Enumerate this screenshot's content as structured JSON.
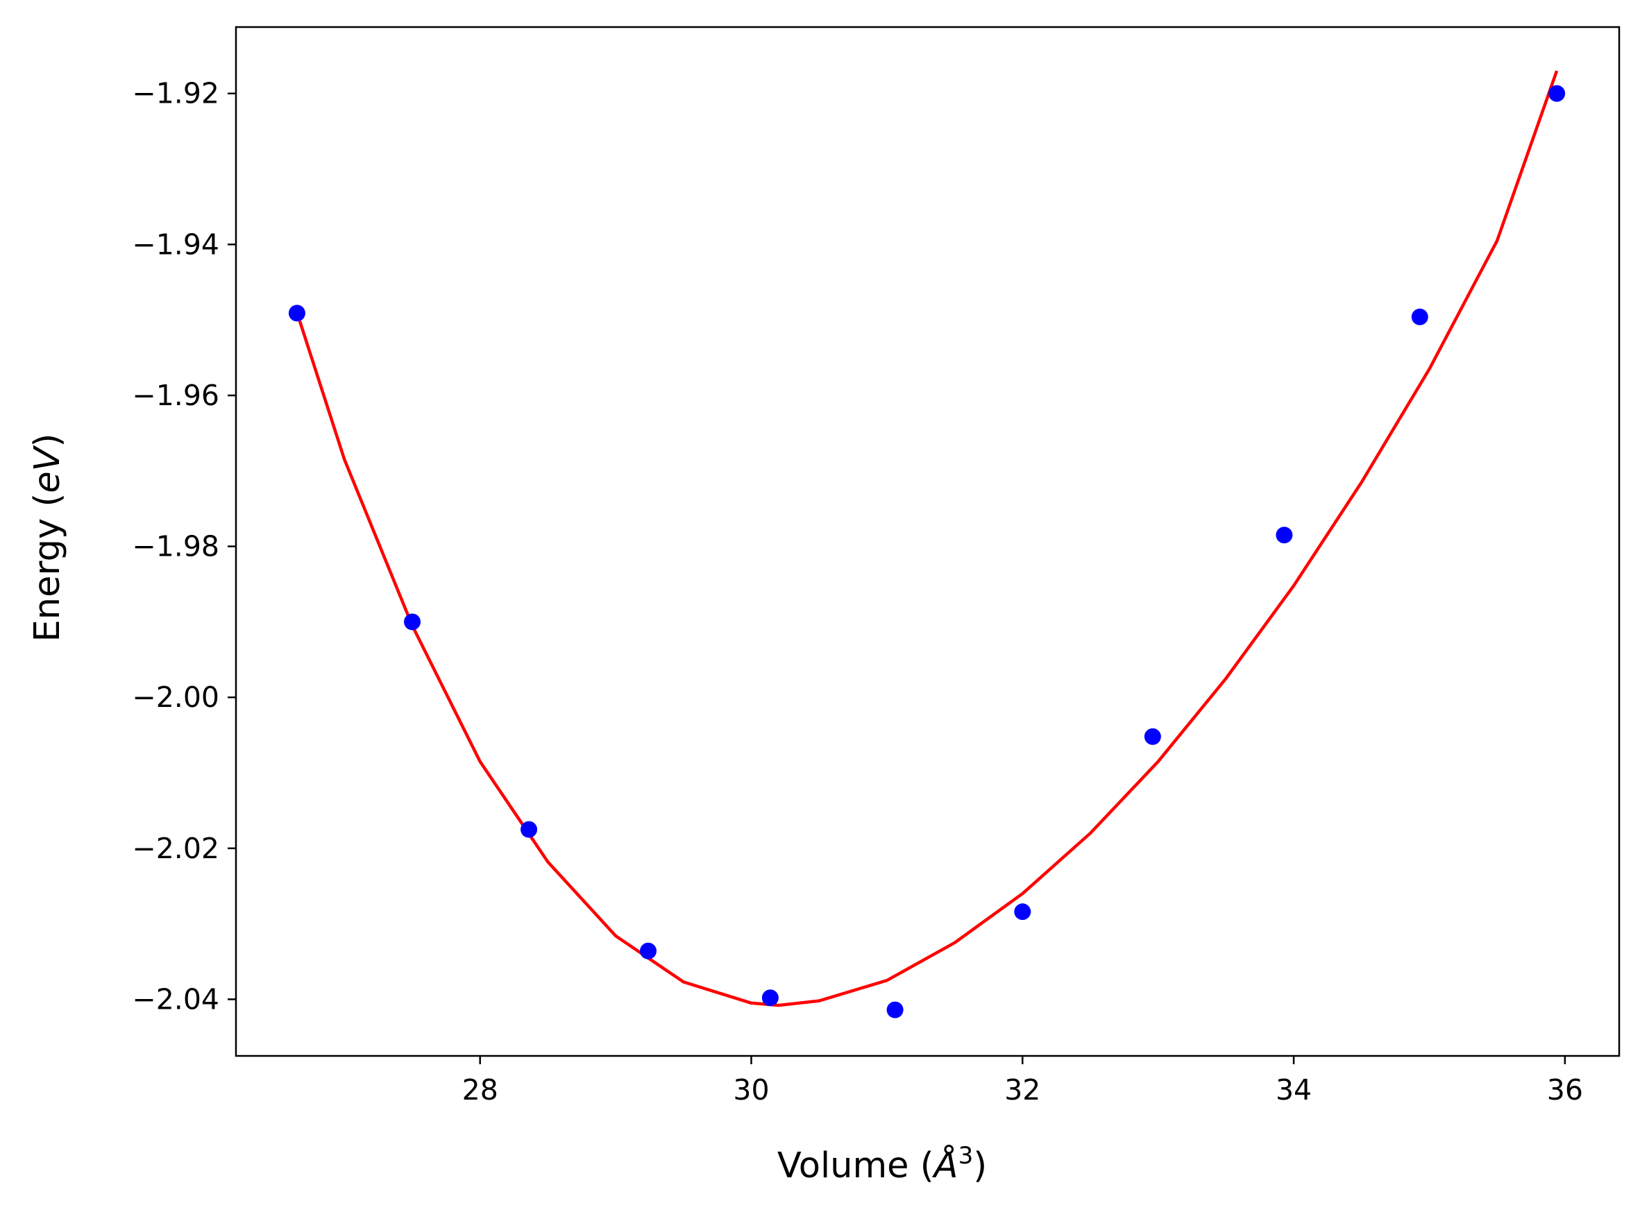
{
  "chart_data": {
    "type": "scatter",
    "title": "",
    "xlabel": "Volume (",
    "xlabel_symbol": "Å",
    "xlabel_exponent": "3",
    "xlabel_close": ")",
    "ylabel": "Energy (",
    "ylabel_italic": "eV",
    "ylabel_close": ")",
    "xlim": [
      26.2,
      36.4
    ],
    "ylim": [
      -2.0475,
      -1.9112
    ],
    "xticks": [
      28,
      30,
      32,
      34,
      36
    ],
    "xtick_labels": [
      "28",
      "30",
      "32",
      "34",
      "36"
    ],
    "yticks": [
      -2.04,
      -2.02,
      -2.0,
      -1.98,
      -1.96,
      -1.94,
      -1.92
    ],
    "ytick_labels": [
      "−2.04",
      "−2.02",
      "−2.00",
      "−1.98",
      "−1.96",
      "−1.94",
      "−1.92"
    ],
    "grid": false,
    "series": [
      {
        "kind": "points",
        "color": "#0000ff",
        "x": [
          26.65,
          27.5,
          28.36,
          29.24,
          30.14,
          31.06,
          32.0,
          32.96,
          33.93,
          34.93,
          35.94
        ],
        "y": [
          -1.9491,
          -1.99,
          -2.0175,
          -2.0336,
          -2.0398,
          -2.0414,
          -2.0284,
          -2.0052,
          -1.9785,
          -1.9496,
          -1.92
        ]
      },
      {
        "kind": "fit-curve",
        "color": "#ff0000",
        "x": [
          26.65,
          27.0,
          27.5,
          28.0,
          28.5,
          29.0,
          29.5,
          30.0,
          30.2,
          30.5,
          31.0,
          31.5,
          32.0,
          32.5,
          33.0,
          33.5,
          34.0,
          34.5,
          35.0,
          35.5,
          35.94
        ],
        "y": [
          -1.949,
          -1.9685,
          -1.9905,
          -2.0085,
          -2.0218,
          -2.0316,
          -2.0377,
          -2.0405,
          -2.0408,
          -2.0402,
          -2.0375,
          -2.0325,
          -2.026,
          -2.018,
          -2.0085,
          -1.9975,
          -1.9852,
          -1.9715,
          -1.9565,
          -1.9395,
          -1.917
        ]
      }
    ]
  }
}
